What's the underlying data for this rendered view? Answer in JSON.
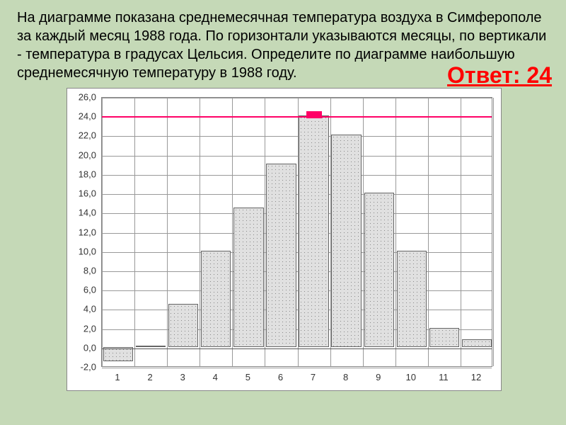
{
  "problem": {
    "text": "На диаграмме показана среднемесячная температура воздуха в Симферополе за каждый месяц 1988 года. По горизонтали указываются месяцы, по вертикали - температура в градусах Цельсия. Определите по диаграмме наибольшую среднемесячную температуру в 1988 году."
  },
  "answer": {
    "label": "Ответ: 24"
  },
  "chart": {
    "type": "bar",
    "background_color": "#ffffff",
    "grid_color": "#999999",
    "bar_fill": "#e0e0e0",
    "bar_border": "#666666",
    "ref_line_color": "#ff0066",
    "ref_value": 24.0,
    "months": [
      1,
      2,
      3,
      4,
      5,
      6,
      7,
      8,
      9,
      10,
      11,
      12
    ],
    "values": [
      -1.5,
      0.0,
      4.5,
      10.0,
      14.5,
      19.0,
      24.0,
      22.0,
      16.0,
      10.0,
      2.0,
      0.8
    ],
    "ymin": -2.0,
    "ymax": 26.0,
    "ytick_step": 2.0,
    "y_labels": [
      "-2,0",
      "0,0",
      "2,0",
      "4,0",
      "6,0",
      "8,0",
      "10,0",
      "12,0",
      "14,0",
      "16,0",
      "18,0",
      "20,0",
      "22,0",
      "24,0",
      "26,0"
    ],
    "x_labels": [
      "1",
      "2",
      "3",
      "4",
      "5",
      "6",
      "7",
      "8",
      "9",
      "10",
      "11",
      "12"
    ],
    "bar_width": 0.92,
    "title_fontsize": 20,
    "label_fontsize": 13
  },
  "page_background": "#c5d9b7"
}
